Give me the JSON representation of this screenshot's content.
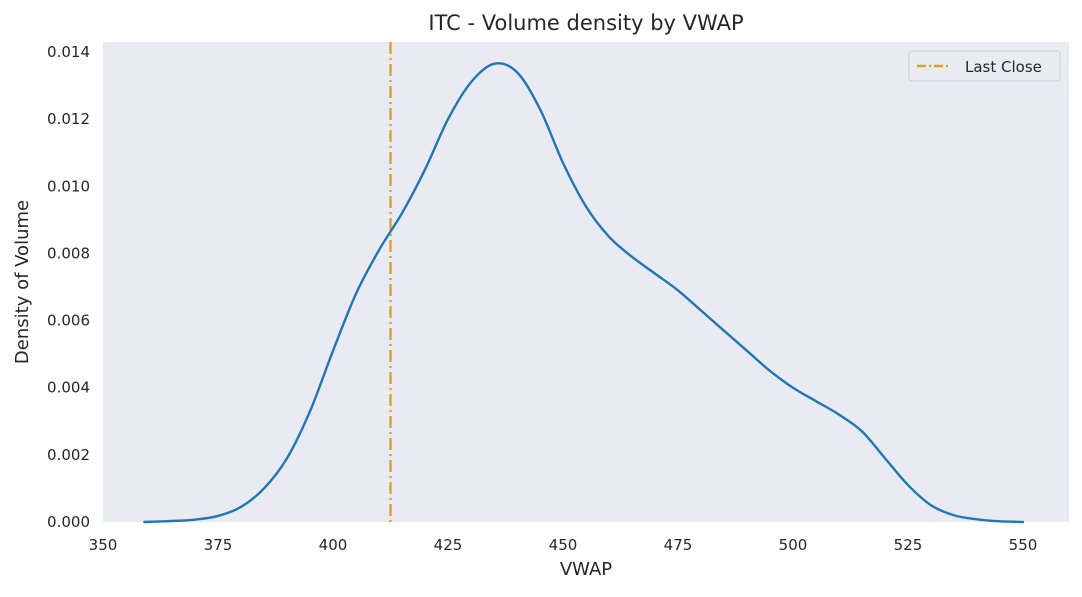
{
  "chart_data": {
    "type": "line",
    "title": "ITC - Volume density by VWAP",
    "xlabel": "VWAP",
    "ylabel": "Density of Volume",
    "xlim": [
      350,
      560
    ],
    "ylim": [
      0,
      0.0143
    ],
    "x_ticks": [
      350,
      375,
      400,
      425,
      450,
      475,
      500,
      525,
      550
    ],
    "x_tick_labels": [
      "350",
      "375",
      "400",
      "425",
      "450",
      "475",
      "500",
      "525",
      "550"
    ],
    "y_ticks": [
      0,
      0.002,
      0.004,
      0.006,
      0.008,
      0.01,
      0.012,
      0.014
    ],
    "y_tick_labels": [
      "0.000",
      "0.002",
      "0.004",
      "0.006",
      "0.008",
      "0.010",
      "0.012",
      "0.014"
    ],
    "grid": false,
    "legend_position": "top-right",
    "series": [
      {
        "name": "",
        "color": "#1f77b4",
        "x": [
          359,
          365,
          370,
          375,
          380,
          385,
          390,
          395,
          400,
          405,
          410,
          415,
          420,
          425,
          430,
          435,
          440,
          445,
          450,
          455,
          460,
          465,
          470,
          475,
          480,
          485,
          490,
          495,
          500,
          505,
          510,
          515,
          520,
          525,
          530,
          535,
          540,
          545,
          550
        ],
        "y": [
          0.0,
          3e-05,
          7e-05,
          0.00018,
          0.00045,
          0.001,
          0.0019,
          0.0033,
          0.0051,
          0.0068,
          0.0081,
          0.0092,
          0.0105,
          0.012,
          0.0131,
          0.01365,
          0.0134,
          0.0123,
          0.0107,
          0.0094,
          0.0085,
          0.0079,
          0.0074,
          0.0069,
          0.0063,
          0.0057,
          0.0051,
          0.0045,
          0.004,
          0.0036,
          0.0032,
          0.0027,
          0.0019,
          0.0011,
          0.0005,
          0.0002,
          8e-05,
          2e-05,
          0.0
        ]
      }
    ],
    "reference_lines": [
      {
        "name": "Last Close",
        "orientation": "vertical",
        "x": 412.5,
        "color": "#DAA520",
        "style": "dash-dot"
      }
    ],
    "colors": {
      "plot_background": "#EAEAF2",
      "curve": "#1f77b4",
      "last_close": "#DAA520"
    }
  }
}
